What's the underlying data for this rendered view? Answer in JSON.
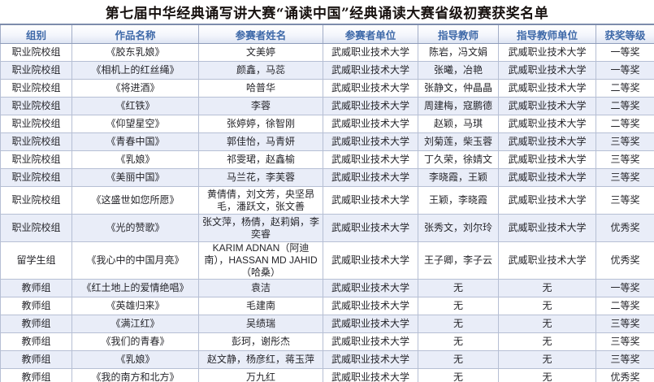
{
  "title": "第七届中华经典诵写讲大赛“诵读中国”经典诵读大赛省级初赛获奖名单",
  "colors": {
    "header_text": "#3d68a8",
    "row_alt_bg": "#e9edf8",
    "border": "#b6bfd4",
    "title_text": "#181210"
  },
  "table": {
    "columns": [
      "组别",
      "作品名称",
      "参赛者姓名",
      "参赛者单位",
      "指导教师",
      "指导教师单位",
      "获奖等级"
    ],
    "rows": [
      [
        "职业院校组",
        "《胶东乳娘》",
        "文美婷",
        "武威职业技术大学",
        "陈岩，冯文娟",
        "武威职业技术大学",
        "一等奖"
      ],
      [
        "职业院校组",
        "《相机上的红丝绳》",
        "颜鑫，马蕊",
        "武威职业技术大学",
        "张曦，冶艳",
        "武威职业技术大学",
        "一等奖"
      ],
      [
        "职业院校组",
        "《将进酒》",
        "哈普华",
        "武威职业技术大学",
        "张静文，仲晶晶",
        "武威职业技术大学",
        "二等奖"
      ],
      [
        "职业院校组",
        "《红铁》",
        "李蓉",
        "武威职业技术大学",
        "周建梅，寇鹏德",
        "武威职业技术大学",
        "二等奖"
      ],
      [
        "职业院校组",
        "《仰望星空》",
        "张婷婷，徐智刚",
        "武威职业技术大学",
        "赵颖，马琪",
        "武威职业技术大学",
        "二等奖"
      ],
      [
        "职业院校组",
        "《青春中国》",
        "郭佳怡，马青妍",
        "武威职业技术大学",
        "刘菊莲，柴玉蓉",
        "武威职业技术大学",
        "三等奖"
      ],
      [
        "职业院校组",
        "《乳娘》",
        "祁雯珺，赵鑫榆",
        "武威职业技术大学",
        "丁久荣，徐婧文",
        "武威职业技术大学",
        "三等奖"
      ],
      [
        "职业院校组",
        "《美丽中国》",
        "马兰花，李芙蓉",
        "武威职业技术大学",
        "李晓霞，王颖",
        "武威职业技术大学",
        "三等奖"
      ],
      [
        "职业院校组",
        "《这盛世如您所愿》",
        "黄倩倩，刘文芳，央坚昂毛，潘跃文，张文善",
        "武威职业技术大学",
        "王颖，李晓霞",
        "武威职业技术大学",
        "三等奖"
      ],
      [
        "职业院校组",
        "《光的赞歌》",
        "张文萍，杨倩，赵莉娟，李奕睿",
        "武威职业技术大学",
        "张秀文，刘尔玲",
        "武威职业技术大学",
        "优秀奖"
      ],
      [
        "留学生组",
        "《我心中的中国月亮》",
        "KARIM ADNAN（阿迪南），HASSAN MD JAHID（哈桑）",
        "武威职业技术大学",
        "王子卿，李子云",
        "武威职业技术大学",
        "优秀奖"
      ],
      [
        "教师组",
        "《红土地上的爱情绝唱》",
        "袁洁",
        "武威职业技术大学",
        "无",
        "无",
        "一等奖"
      ],
      [
        "教师组",
        "《英雄归来》",
        "毛建南",
        "武威职业技术大学",
        "无",
        "无",
        "二等奖"
      ],
      [
        "教师组",
        "《满江红》",
        "吴绩瑞",
        "武威职业技术大学",
        "无",
        "无",
        "三等奖"
      ],
      [
        "教师组",
        "《我们的青春》",
        "彭珂，谢彤杰",
        "武威职业技术大学",
        "无",
        "无",
        "三等奖"
      ],
      [
        "教师组",
        "《乳娘》",
        "赵文静，杨彦红，蒋玉萍",
        "武威职业技术大学",
        "无",
        "无",
        "三等奖"
      ],
      [
        "教师组",
        "《我的南方和北方》",
        "万九红",
        "武威职业技术大学",
        "无",
        "无",
        "优秀奖"
      ]
    ]
  }
}
